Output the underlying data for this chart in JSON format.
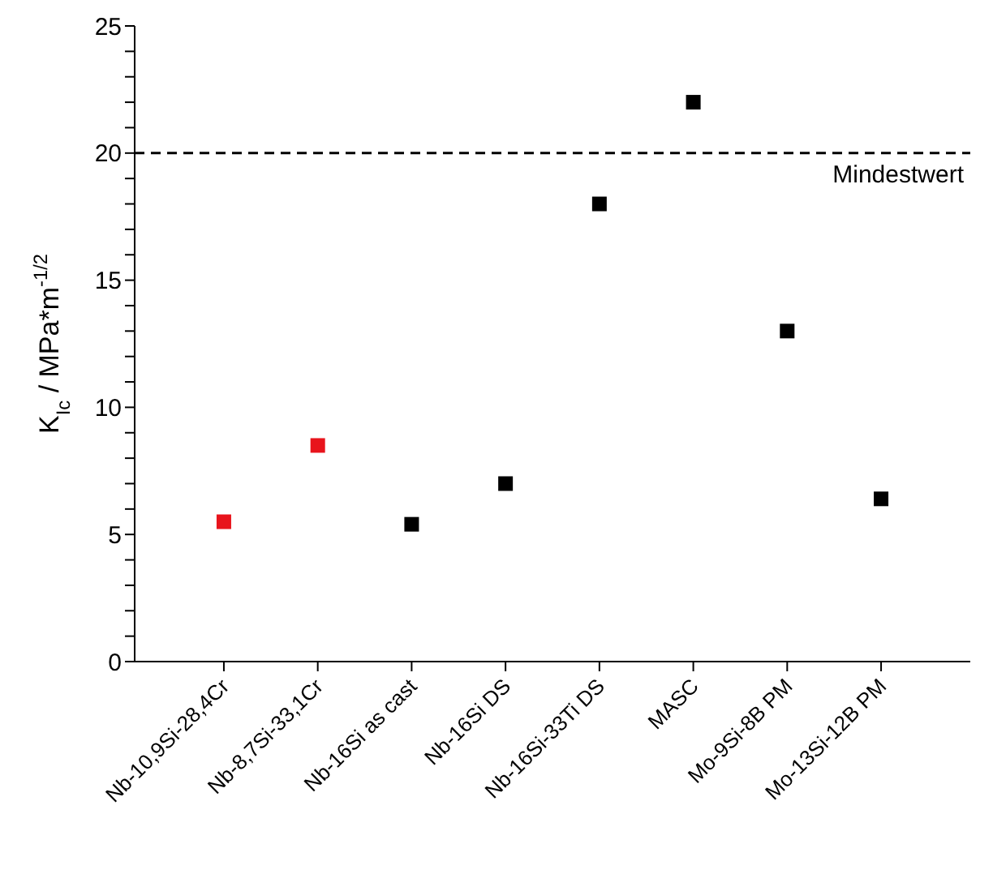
{
  "chart_data": {
    "type": "scatter",
    "ylabel": "K$_{Ic}$ / MPa*m$^{-1/2}$",
    "categories": [
      "Nb-10,9Si-28,4Cr",
      "Nb-8,7Si-33,1Cr",
      "Nb-16Si as cast",
      "Nb-16Si DS",
      "Nb-16Si-33Ti DS",
      "MASC",
      "Mo-9Si-8B PM",
      "Mo-13Si-12B PM"
    ],
    "values": [
      5.5,
      8.5,
      5.4,
      7.0,
      18,
      22,
      13,
      6.4
    ],
    "colors": [
      "#e8141c",
      "#e8141c",
      "#000000",
      "#000000",
      "#000000",
      "#000000",
      "#000000",
      "#000000"
    ],
    "marker": "square",
    "ylim": [
      0,
      25
    ],
    "yticks": [
      0,
      {
        "value": 1,
        "label": null
      },
      {
        "value": 2,
        "label": null
      },
      {
        "value": 3,
        "label": null
      },
      {
        "value": 4,
        "label": null
      },
      5,
      {
        "value": 6,
        "label": null
      },
      {
        "value": 7,
        "label": null
      },
      {
        "value": 8,
        "label": null
      },
      {
        "value": 9,
        "label": null
      },
      10,
      {
        "value": 11,
        "label": null
      },
      {
        "value": 12,
        "label": null
      },
      {
        "value": 13,
        "label": null
      },
      {
        "value": 14,
        "label": null
      },
      15,
      {
        "value": 16,
        "label": null
      },
      {
        "value": 17,
        "label": null
      },
      {
        "value": 18,
        "label": null
      },
      {
        "value": 19,
        "label": null
      },
      20,
      {
        "value": 21,
        "label": null
      },
      {
        "value": 22,
        "label": null
      },
      {
        "value": 23,
        "label": null
      },
      {
        "value": 24,
        "label": null
      },
      25
    ],
    "ref_lines": [
      {
        "axis": "y",
        "value": 20,
        "label": "Mindestwert",
        "color": "#000000",
        "line_style": "dashed"
      }
    ]
  }
}
